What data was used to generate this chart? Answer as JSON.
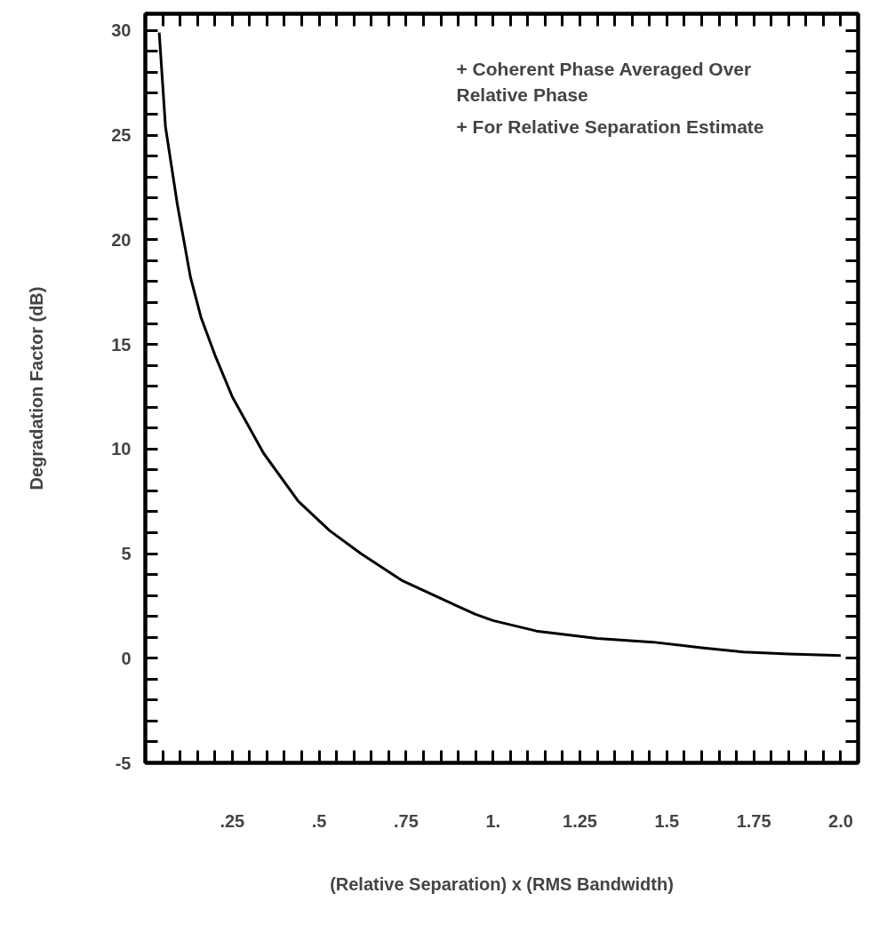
{
  "chart_data": {
    "type": "line",
    "xlabel": "(Relative Separation) x (RMS Bandwidth)",
    "ylabel": "Degradation Factor (dB)",
    "annotations": [
      "+ Coherent Phase Averaged Over\n   Relative Phase",
      "+ For Relative Separation Estimate"
    ],
    "xlim": [
      0,
      2.05
    ],
    "ylim": [
      -5,
      30.8
    ],
    "xticks": [
      {
        "value": 0.05,
        "label": null
      },
      {
        "value": 0.1,
        "label": null
      },
      {
        "value": 0.15,
        "label": null
      },
      {
        "value": 0.2,
        "label": null
      },
      {
        "value": 0.25,
        "label": ".25"
      },
      {
        "value": 0.3,
        "label": null
      },
      {
        "value": 0.35,
        "label": null
      },
      {
        "value": 0.4,
        "label": null
      },
      {
        "value": 0.45,
        "label": null
      },
      {
        "value": 0.5,
        "label": ".5"
      },
      {
        "value": 0.55,
        "label": null
      },
      {
        "value": 0.6,
        "label": null
      },
      {
        "value": 0.65,
        "label": null
      },
      {
        "value": 0.7,
        "label": null
      },
      {
        "value": 0.75,
        "label": ".75"
      },
      {
        "value": 0.8,
        "label": null
      },
      {
        "value": 0.85,
        "label": null
      },
      {
        "value": 0.9,
        "label": null
      },
      {
        "value": 0.95,
        "label": null
      },
      {
        "value": 1.0,
        "label": "1."
      },
      {
        "value": 1.05,
        "label": null
      },
      {
        "value": 1.1,
        "label": null
      },
      {
        "value": 1.15,
        "label": null
      },
      {
        "value": 1.2,
        "label": null
      },
      {
        "value": 1.25,
        "label": "1.25"
      },
      {
        "value": 1.3,
        "label": null
      },
      {
        "value": 1.35,
        "label": null
      },
      {
        "value": 1.4,
        "label": null
      },
      {
        "value": 1.45,
        "label": null
      },
      {
        "value": 1.5,
        "label": "1.5"
      },
      {
        "value": 1.55,
        "label": null
      },
      {
        "value": 1.6,
        "label": null
      },
      {
        "value": 1.65,
        "label": null
      },
      {
        "value": 1.7,
        "label": null
      },
      {
        "value": 1.75,
        "label": "1.75"
      },
      {
        "value": 1.8,
        "label": null
      },
      {
        "value": 1.85,
        "label": null
      },
      {
        "value": 1.9,
        "label": null
      },
      {
        "value": 1.95,
        "label": null
      },
      {
        "value": 2.0,
        "label": "2.0"
      }
    ],
    "yticks": [
      -5,
      {
        "value": -4,
        "label": null
      },
      {
        "value": -3,
        "label": null
      },
      {
        "value": -2,
        "label": null
      },
      {
        "value": -1,
        "label": null
      },
      0,
      {
        "value": 1,
        "label": null
      },
      {
        "value": 2,
        "label": null
      },
      {
        "value": 3,
        "label": null
      },
      {
        "value": 4,
        "label": null
      },
      5,
      {
        "value": 6,
        "label": null
      },
      {
        "value": 7,
        "label": null
      },
      {
        "value": 8,
        "label": null
      },
      {
        "value": 9,
        "label": null
      },
      10,
      {
        "value": 11,
        "label": null
      },
      {
        "value": 12,
        "label": null
      },
      {
        "value": 13,
        "label": null
      },
      {
        "value": 14,
        "label": null
      },
      15,
      {
        "value": 16,
        "label": null
      },
      {
        "value": 17,
        "label": null
      },
      {
        "value": 18,
        "label": null
      },
      {
        "value": 19,
        "label": null
      },
      20,
      {
        "value": 21,
        "label": null
      },
      {
        "value": 22,
        "label": null
      },
      {
        "value": 23,
        "label": null
      },
      {
        "value": 24,
        "label": null
      },
      25,
      {
        "value": 26,
        "label": null
      },
      {
        "value": 27,
        "label": null
      },
      {
        "value": 28,
        "label": null
      },
      {
        "value": 29,
        "label": null
      },
      30
    ],
    "grid": false,
    "marker": "none",
    "line_style": "solid",
    "x": [
      0.04,
      0.058,
      0.092,
      0.13,
      0.16,
      0.2,
      0.25,
      0.34,
      0.44,
      0.53,
      0.62,
      0.74,
      0.87,
      0.95,
      1.0,
      1.125,
      1.3,
      1.46,
      1.6,
      1.72,
      1.85,
      2.0
    ],
    "series": [
      {
        "color": "#000000",
        "values": [
          29.9,
          25.4,
          21.7,
          18.2,
          16.3,
          14.5,
          12.5,
          9.8,
          7.5,
          6.1,
          5.0,
          3.7,
          2.7,
          2.1,
          1.8,
          1.3,
          0.95,
          0.77,
          0.5,
          0.3,
          0.2,
          0.13
        ]
      }
    ]
  }
}
